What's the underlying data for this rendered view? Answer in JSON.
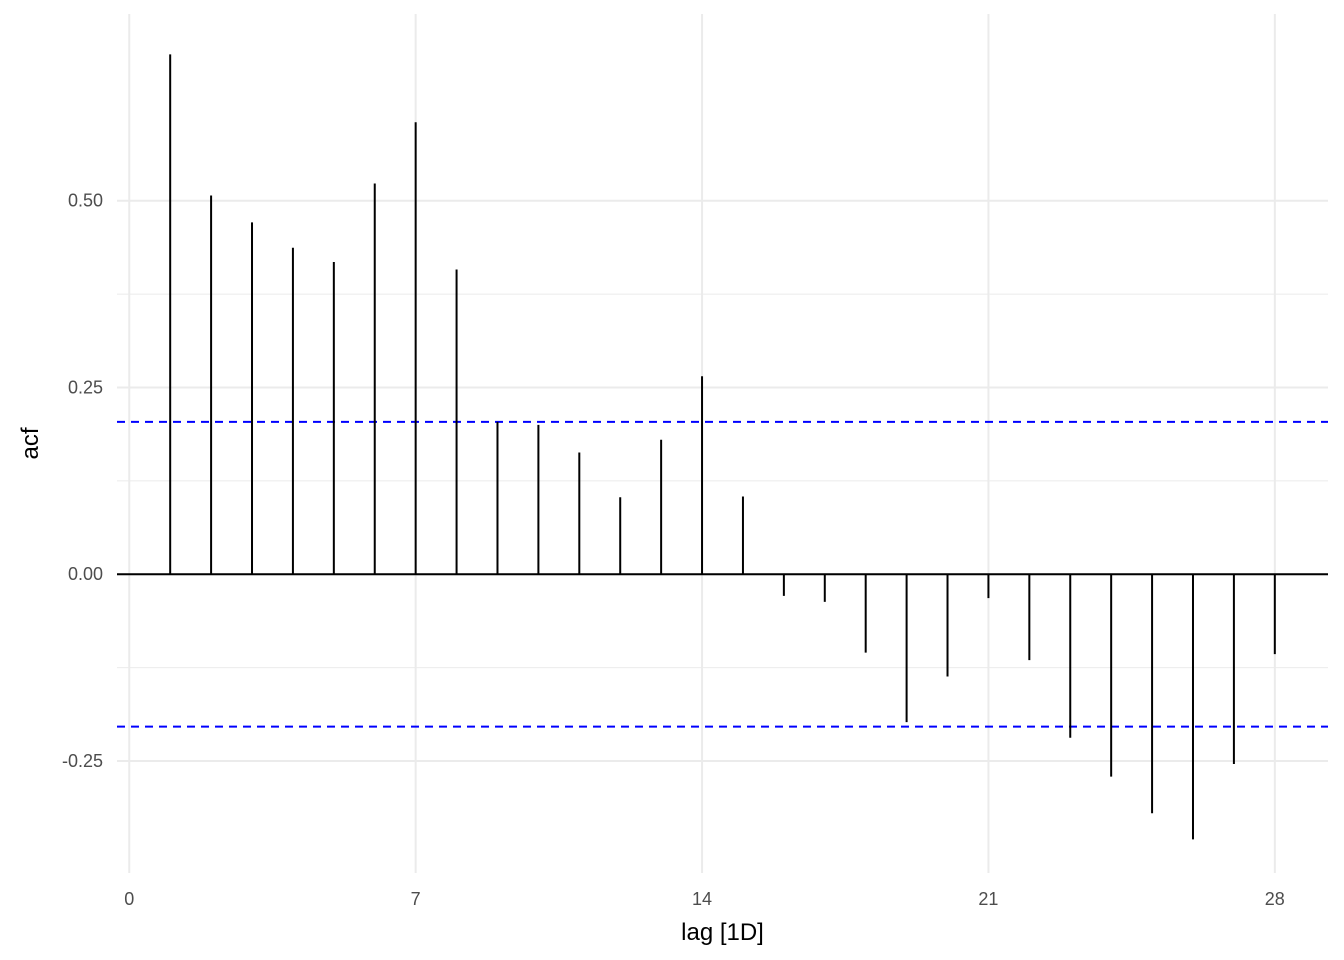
{
  "chart_data": {
    "type": "bar",
    "subtype": "acf-lollipop",
    "xlabel": "lag [1D]",
    "ylabel": "acf",
    "x": [
      1,
      2,
      3,
      4,
      5,
      6,
      7,
      8,
      9,
      10,
      11,
      12,
      13,
      14,
      15,
      16,
      17,
      18,
      19,
      20,
      21,
      22,
      23,
      24,
      25,
      26,
      27,
      28
    ],
    "values": [
      0.696,
      0.507,
      0.471,
      0.437,
      0.418,
      0.523,
      0.605,
      0.408,
      0.204,
      0.2,
      0.163,
      0.103,
      0.18,
      0.265,
      0.104,
      -0.029,
      -0.037,
      -0.105,
      -0.198,
      -0.137,
      -0.032,
      -0.115,
      -0.219,
      -0.271,
      -0.32,
      -0.355,
      -0.254,
      -0.107
    ],
    "confidence_bounds": [
      0.204,
      -0.204
    ],
    "xlim": [
      -0.3,
      29.3
    ],
    "ylim": [
      -0.4,
      0.75
    ],
    "xticks": [
      0,
      7,
      14,
      21,
      28
    ],
    "xtick_labels": [
      "0",
      "7",
      "14",
      "21",
      "28"
    ],
    "yticks": [
      -0.25,
      0,
      0.25,
      0.5
    ],
    "ytick_labels": [
      "-0.25",
      "0.00",
      "0.25",
      "0.50"
    ],
    "grid": true,
    "colors": {
      "grid": "#ebebeb",
      "bars": "#000000",
      "bounds": "#0000ff",
      "zero_line": "#000000"
    }
  }
}
